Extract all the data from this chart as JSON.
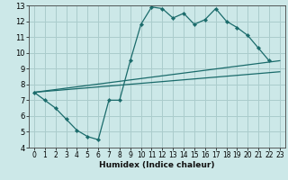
{
  "xlabel": "Humidex (Indice chaleur)",
  "ylabel": "",
  "xlim": [
    -0.5,
    23.5
  ],
  "ylim": [
    4,
    13
  ],
  "xticks": [
    0,
    1,
    2,
    3,
    4,
    5,
    6,
    7,
    8,
    9,
    10,
    11,
    12,
    13,
    14,
    15,
    16,
    17,
    18,
    19,
    20,
    21,
    22,
    23
  ],
  "yticks": [
    4,
    5,
    6,
    7,
    8,
    9,
    10,
    11,
    12,
    13
  ],
  "bg_color": "#cce8e8",
  "grid_color": "#aacccc",
  "line_color": "#1a6b6b",
  "line1_x": [
    0,
    1,
    2,
    3,
    4,
    5,
    6,
    7,
    8,
    9,
    10,
    11,
    12,
    13,
    14,
    15,
    16,
    17,
    18,
    19,
    20,
    21,
    22
  ],
  "line1_y": [
    7.5,
    7.0,
    6.5,
    5.8,
    5.1,
    4.7,
    4.5,
    7.0,
    7.0,
    9.5,
    11.8,
    12.9,
    12.8,
    12.2,
    12.5,
    11.8,
    12.1,
    12.8,
    12.0,
    11.6,
    11.1,
    10.3,
    9.5
  ],
  "line2_x": [
    0,
    23
  ],
  "line2_y": [
    7.5,
    9.5
  ],
  "line3_x": [
    0,
    23
  ],
  "line3_y": [
    7.5,
    8.8
  ]
}
